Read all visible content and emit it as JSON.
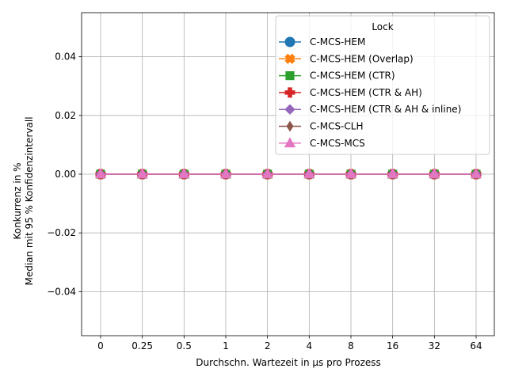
{
  "chart_data": {
    "type": "line",
    "x_axis_scale": "categorical (evenly spaced)",
    "categories": [
      "0",
      "0.25",
      "0.5",
      "1",
      "2",
      "4",
      "8",
      "16",
      "32",
      "64"
    ],
    "xlabel": "Durchschn. Wartezeit in µs pro Prozess",
    "ylabel_lines": [
      "Konkurrenz in %",
      "Median mit 95 % Konfidenzintervall"
    ],
    "ylim": [
      -0.055,
      0.055
    ],
    "yticks": [
      -0.04,
      -0.02,
      0.0,
      0.02,
      0.04
    ],
    "ytick_labels": [
      "−0.04",
      "−0.02",
      "0.00",
      "0.02",
      "0.04"
    ],
    "grid": true,
    "legend_title": "Lock",
    "legend_position": "top-right",
    "series": [
      {
        "name": "C-MCS-HEM",
        "color": "#1f77b4",
        "marker": "circle",
        "values": [
          0,
          0,
          0,
          0,
          0,
          0,
          0,
          0,
          0,
          0
        ]
      },
      {
        "name": "C-MCS-HEM (Overlap)",
        "color": "#ff7f0e",
        "marker": "x-filled",
        "values": [
          0,
          0,
          0,
          0,
          0,
          0,
          0,
          0,
          0,
          0
        ]
      },
      {
        "name": "C-MCS-HEM (CTR)",
        "color": "#2ca02c",
        "marker": "square",
        "values": [
          0,
          0,
          0,
          0,
          0,
          0,
          0,
          0,
          0,
          0
        ]
      },
      {
        "name": "C-MCS-HEM (CTR & AH)",
        "color": "#d62728",
        "marker": "plus-filled",
        "values": [
          0,
          0,
          0,
          0,
          0,
          0,
          0,
          0,
          0,
          0
        ]
      },
      {
        "name": "C-MCS-HEM (CTR & AH & inline)",
        "color": "#9467bd",
        "marker": "diamond",
        "values": [
          0,
          0,
          0,
          0,
          0,
          0,
          0,
          0,
          0,
          0
        ]
      },
      {
        "name": "C-MCS-CLH",
        "color": "#8c564b",
        "marker": "thin-diamond",
        "values": [
          0,
          0,
          0,
          0,
          0,
          0,
          0,
          0,
          0,
          0
        ]
      },
      {
        "name": "C-MCS-MCS",
        "color": "#e377c2",
        "marker": "triangle",
        "values": [
          0,
          0,
          0,
          0,
          0,
          0,
          0,
          0,
          0,
          0
        ]
      }
    ]
  }
}
